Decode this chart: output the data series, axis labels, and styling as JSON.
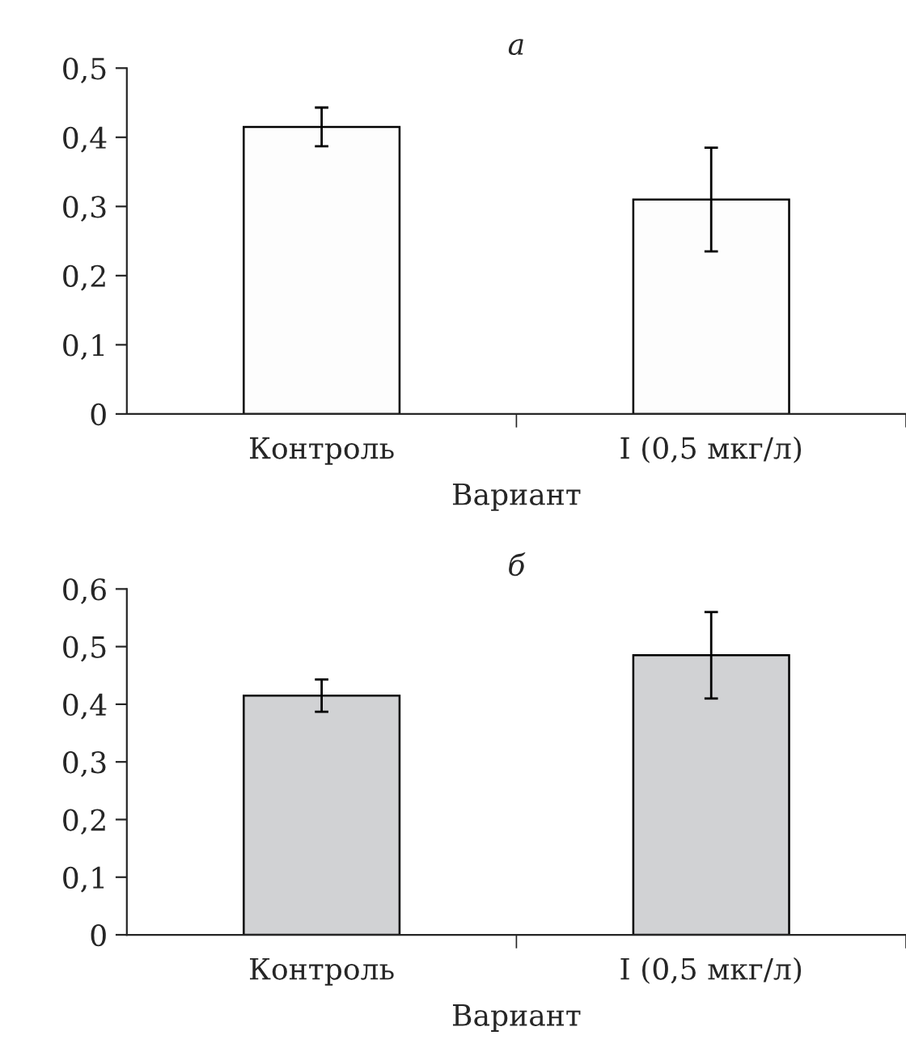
{
  "chart_data": [
    {
      "type": "bar",
      "title": "а",
      "xlabel": "Вариант",
      "categories": [
        "Контроль",
        "I (0,5 мкг/л)"
      ],
      "values": [
        0.415,
        0.31
      ],
      "errors": [
        0.028,
        0.075
      ],
      "color": "#fdfdfd",
      "ylim": [
        0,
        0.5
      ],
      "yticks": [
        {
          "value": 0,
          "label": "0"
        },
        {
          "value": 0.1,
          "label": "0,1"
        },
        {
          "value": 0.2,
          "label": "0,2"
        },
        {
          "value": 0.3,
          "label": "0,3"
        },
        {
          "value": 0.4,
          "label": "0,4"
        },
        {
          "value": 0.5,
          "label": "0,5"
        }
      ],
      "grid": false
    },
    {
      "type": "bar",
      "title": "б",
      "xlabel": "Вариант",
      "categories": [
        "Контроль",
        "I (0,5 мкг/л)"
      ],
      "values": [
        0.415,
        0.485
      ],
      "errors": [
        0.028,
        0.075
      ],
      "color": "#d1d2d4",
      "ylim": [
        0,
        0.6
      ],
      "yticks": [
        {
          "value": 0,
          "label": "0"
        },
        {
          "value": 0.1,
          "label": "0,1"
        },
        {
          "value": 0.2,
          "label": "0,2"
        },
        {
          "value": 0.3,
          "label": "0,3"
        },
        {
          "value": 0.4,
          "label": "0,4"
        },
        {
          "value": 0.5,
          "label": "0,5"
        },
        {
          "value": 0.6,
          "label": "0,6"
        }
      ],
      "grid": false
    }
  ]
}
